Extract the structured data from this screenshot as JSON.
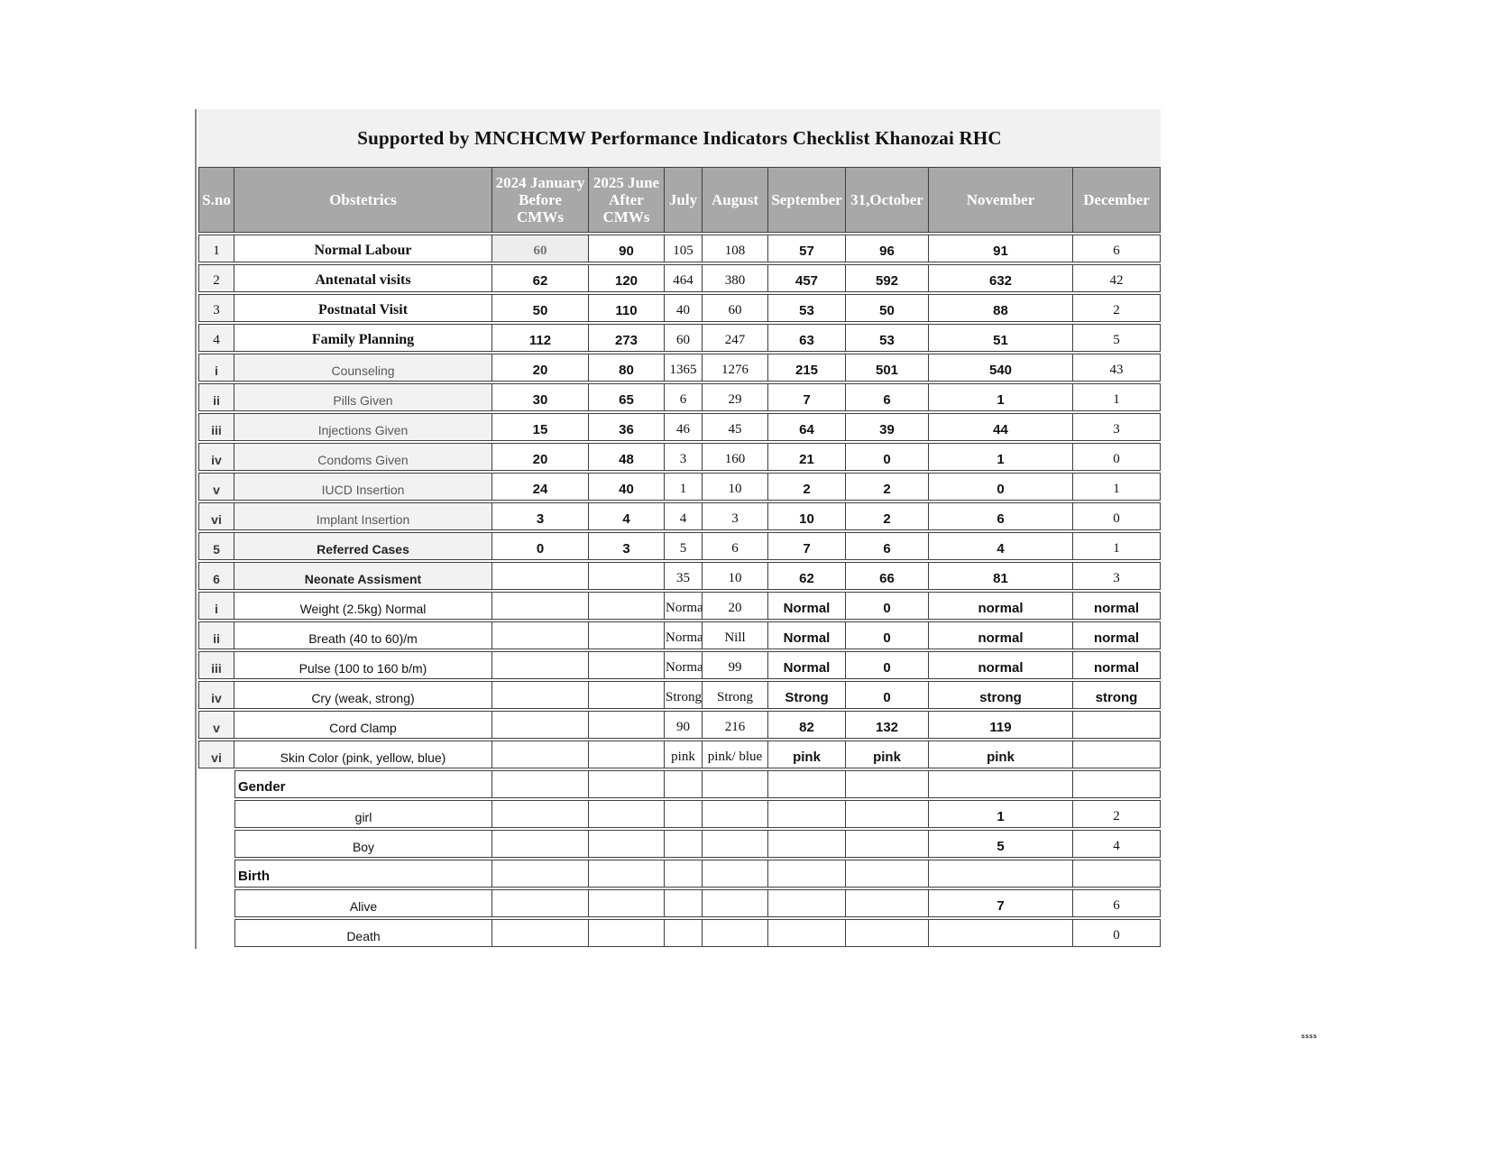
{
  "title": "Supported by MNCHCMW Performance Indicators Checklist Khanozai RHC",
  "watermark": "ssss",
  "colors": {
    "header_bg": "#a8a8a8",
    "header_text": "#ffffff",
    "title_band_bg": "#f1f1f1",
    "shaded_cell_bg": "#f2f2f2",
    "grid_border": "#3f3f3f",
    "sub_label_text": "#595959"
  },
  "table": {
    "columns": [
      {
        "key": "sno",
        "label": "S.no"
      },
      {
        "key": "label",
        "label": "Obstetrics"
      },
      {
        "key": "jan",
        "label": "2024 January Before CMWs"
      },
      {
        "key": "jun",
        "label": "2025 June After CMWs"
      },
      {
        "key": "jul",
        "label": "July"
      },
      {
        "key": "aug",
        "label": "August"
      },
      {
        "key": "sep",
        "label": "September"
      },
      {
        "key": "oct",
        "label": "31,October"
      },
      {
        "key": "nov",
        "label": "November"
      },
      {
        "key": "dec",
        "label": "December"
      }
    ],
    "value_column_order": [
      "jan",
      "jun",
      "jul",
      "aug",
      "sep",
      "oct",
      "nov",
      "dec"
    ],
    "rows": [
      {
        "sno": "1",
        "label": "Normal Labour",
        "type": "main",
        "jan_highlighted": true,
        "values": [
          "60",
          "90",
          "105",
          "108",
          "57",
          "96",
          "91",
          "6"
        ]
      },
      {
        "sno": "2",
        "label": "Antenatal visits",
        "type": "main",
        "values": [
          "62",
          "120",
          "464",
          "380",
          "457",
          "592",
          "632",
          "42"
        ]
      },
      {
        "sno": "3",
        "label": "Postnatal Visit",
        "type": "main",
        "values": [
          "50",
          "110",
          "40",
          "60",
          "53",
          "50",
          "88",
          "2"
        ]
      },
      {
        "sno": "4",
        "label": "Family Planning",
        "type": "main",
        "values": [
          "112",
          "273",
          "60",
          "247",
          "63",
          "53",
          "51",
          "5"
        ]
      },
      {
        "sno": "i",
        "label": "Counseling",
        "type": "sub",
        "values": [
          "20",
          "80",
          "1365",
          "1276",
          "215",
          "501",
          "540",
          "43"
        ]
      },
      {
        "sno": "ii",
        "label": "Pills Given",
        "type": "sub",
        "values": [
          "30",
          "65",
          "6",
          "29",
          "7",
          "6",
          "1",
          "1"
        ]
      },
      {
        "sno": "iii",
        "label": "Injections Given",
        "type": "sub",
        "values": [
          "15",
          "36",
          "46",
          "45",
          "64",
          "39",
          "44",
          "3"
        ]
      },
      {
        "sno": "iv",
        "label": "Condoms Given",
        "type": "sub",
        "values": [
          "20",
          "48",
          "3",
          "160",
          "21",
          "0",
          "1",
          "0"
        ]
      },
      {
        "sno": "v",
        "label": "IUCD Insertion",
        "type": "sub",
        "values": [
          "24",
          "40",
          "1",
          "10",
          "2",
          "2",
          "0",
          "1"
        ]
      },
      {
        "sno": "vi",
        "label": "Implant Insertion",
        "type": "sub",
        "values": [
          "3",
          "4",
          "4",
          "3",
          "10",
          "2",
          "6",
          "0"
        ]
      },
      {
        "sno": "5",
        "label": "Referred Cases",
        "type": "boldgray",
        "values": [
          "0",
          "3",
          "5",
          "6",
          "7",
          "6",
          "4",
          "1"
        ]
      },
      {
        "sno": "6",
        "label": "Neonate Assisment",
        "type": "boldgray",
        "values": [
          "",
          "",
          "35",
          "10",
          "62",
          "66",
          "81",
          "3"
        ]
      },
      {
        "sno": "i",
        "label": "Weight (2.5kg) Normal",
        "type": "subwhite",
        "dec_bold": true,
        "values": [
          "",
          "",
          "Normal",
          "20",
          "Normal",
          "0",
          "normal",
          "normal"
        ]
      },
      {
        "sno": "ii",
        "label": "Breath (40 to 60)/m",
        "type": "subwhite",
        "dec_bold": true,
        "values": [
          "",
          "",
          "Normal",
          "Nill",
          "Normal",
          "0",
          "normal",
          "normal"
        ]
      },
      {
        "sno": "iii",
        "label": "Pulse (100 to 160 b/m)",
        "type": "subwhite",
        "dec_bold": true,
        "values": [
          "",
          "",
          "Normal",
          "99",
          "Normal",
          "0",
          "normal",
          "normal"
        ]
      },
      {
        "sno": "iv",
        "label": "Cry (weak, strong)",
        "type": "subwhite",
        "dec_bold": true,
        "values": [
          "",
          "",
          "Strong",
          "Strong",
          "Strong",
          "0",
          "strong",
          "strong"
        ]
      },
      {
        "sno": "v",
        "label": "Cord Clamp",
        "type": "subwhite",
        "values": [
          "",
          "",
          "90",
          "216",
          "82",
          "132",
          "119",
          ""
        ]
      },
      {
        "sno": "vi",
        "label": "Skin Color (pink, yellow, blue)",
        "type": "subwhite",
        "values": [
          "",
          "",
          "pink",
          "pink/ blue",
          "pink",
          "pink",
          "pink",
          ""
        ]
      },
      {
        "sno": "",
        "label": "Gender",
        "type": "section",
        "values": [
          "",
          "",
          "",
          "",
          "",
          "",
          "",
          ""
        ]
      },
      {
        "sno": "",
        "label": "girl",
        "type": "plain",
        "values": [
          "",
          "",
          "",
          "",
          "",
          "",
          "1",
          "2"
        ]
      },
      {
        "sno": "",
        "label": "Boy",
        "type": "plain",
        "values": [
          "",
          "",
          "",
          "",
          "",
          "",
          "5",
          "4"
        ]
      },
      {
        "sno": "",
        "label": "Birth",
        "type": "section",
        "values": [
          "",
          "",
          "",
          "",
          "",
          "",
          "",
          ""
        ]
      },
      {
        "sno": "",
        "label": "Alive",
        "type": "plain",
        "values": [
          "",
          "",
          "",
          "",
          "",
          "",
          "7",
          "6"
        ]
      },
      {
        "sno": "",
        "label": "Death",
        "type": "plain",
        "values": [
          "",
          "",
          "",
          "",
          "",
          "",
          "",
          "0"
        ]
      }
    ]
  }
}
